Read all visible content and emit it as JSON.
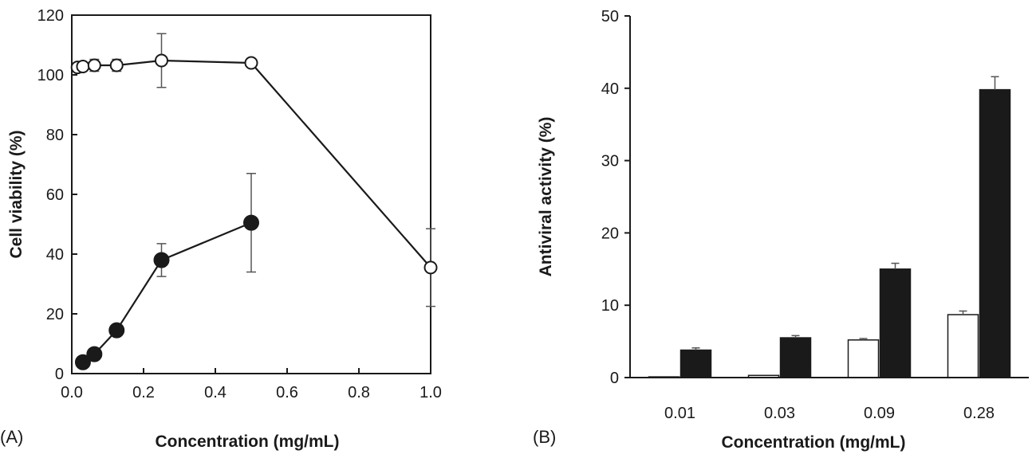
{
  "chart_data": [
    {
      "panel": "(A)",
      "type": "line",
      "xlabel": "Concentration (mg/mL)",
      "ylabel": "Cell viability (%)",
      "xlim": [
        0.0,
        1.0
      ],
      "ylim": [
        0,
        120
      ],
      "xticks": [
        0.0,
        0.2,
        0.4,
        0.6,
        0.8,
        1.0
      ],
      "xtick_labels": [
        "0.0",
        "0.2",
        "0.4",
        "0.6",
        "0.8",
        "1.0"
      ],
      "yticks": [
        0,
        20,
        40,
        60,
        80,
        100,
        120
      ],
      "ytick_labels": [
        "0",
        "20",
        "40",
        "60",
        "80",
        "100",
        "120"
      ],
      "grid": false,
      "legend": "none",
      "series": [
        {
          "name": "open circles",
          "marker": "open-circle",
          "color": "#1a1a1a",
          "x": [
            0.016,
            0.031,
            0.063,
            0.125,
            0.25,
            0.5,
            1.0
          ],
          "y": [
            102.5,
            102.8,
            103.2,
            103.2,
            104.8,
            104.0,
            35.5
          ],
          "err": [
            0,
            0,
            2,
            2,
            9,
            0,
            13
          ]
        },
        {
          "name": "filled circles",
          "marker": "filled-circle",
          "color": "#1a1a1a",
          "x": [
            0.031,
            0.063,
            0.125,
            0.25,
            0.5
          ],
          "y": [
            3.8,
            6.5,
            14.5,
            38.0,
            50.5
          ],
          "err": [
            0,
            0,
            0,
            5.5,
            16.5
          ]
        }
      ]
    },
    {
      "panel": "(B)",
      "type": "bar",
      "xlabel": "Concentration (mg/mL)",
      "ylabel": "Antiviral activity (%)",
      "ylim": [
        0,
        50
      ],
      "yticks": [
        0,
        10,
        20,
        30,
        40,
        50
      ],
      "ytick_labels": [
        "0",
        "10",
        "20",
        "30",
        "40",
        "50"
      ],
      "categories": [
        "0.01",
        "0.03",
        "0.09",
        "0.28"
      ],
      "grid": false,
      "legend": "none",
      "series": [
        {
          "name": "open bars",
          "fill": "#ffffff",
          "stroke": "#1a1a1a",
          "values": [
            0.1,
            0.3,
            5.2,
            8.7
          ],
          "err": [
            0,
            0,
            0.2,
            0.5
          ]
        },
        {
          "name": "filled bars",
          "fill": "#1a1a1a",
          "stroke": "#1a1a1a",
          "values": [
            3.8,
            5.5,
            15.0,
            39.8
          ],
          "err": [
            0.3,
            0.3,
            0.8,
            1.8
          ]
        }
      ]
    }
  ]
}
